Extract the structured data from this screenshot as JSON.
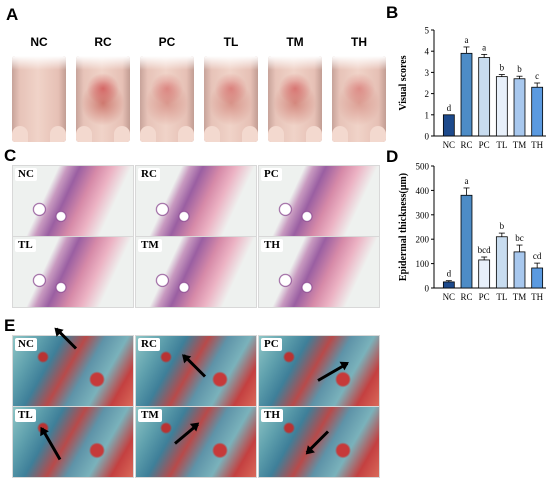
{
  "panels": {
    "a": {
      "letter": "A",
      "groups": [
        "NC",
        "RC",
        "PC",
        "TL",
        "TM",
        "TH"
      ]
    },
    "c": {
      "letter": "C",
      "groups": [
        "NC",
        "RC",
        "PC",
        "TL",
        "TM",
        "TH"
      ]
    },
    "e": {
      "letter": "E",
      "groups": [
        "NC",
        "RC",
        "PC",
        "TL",
        "TM",
        "TH"
      ]
    }
  },
  "chart_data": [
    {
      "panel": "B",
      "type": "bar",
      "categories": [
        "NC",
        "RC",
        "PC",
        "TL",
        "TM",
        "TH"
      ],
      "values": [
        1,
        3.9,
        3.7,
        2.8,
        2.7,
        2.3
      ],
      "errors": [
        0,
        0.3,
        0.15,
        0.1,
        0.12,
        0.2
      ],
      "letters": [
        "d",
        "a",
        "a",
        "b",
        "b",
        "c"
      ],
      "ylabel": "Visual scores",
      "ylim": [
        0,
        5
      ],
      "yticks": [
        0,
        1,
        2,
        3,
        4,
        5
      ],
      "colors": [
        "#1d4a8c",
        "#4d8cc6",
        "#c8dcef",
        "#e8f0fa",
        "#a8c8ee",
        "#5b9ae0"
      ]
    },
    {
      "panel": "D",
      "type": "bar",
      "categories": [
        "NC",
        "RC",
        "PC",
        "TL",
        "TM",
        "TH"
      ],
      "values": [
        25,
        380,
        115,
        210,
        148,
        82
      ],
      "errors": [
        5,
        30,
        12,
        15,
        28,
        20
      ],
      "letters": [
        "d",
        "a",
        "bcd",
        "b",
        "bc",
        "cd"
      ],
      "ylabel": "Epidermal thickness(μm)",
      "ylim": [
        0,
        500
      ],
      "yticks": [
        0,
        100,
        200,
        300,
        400,
        500
      ],
      "colors": [
        "#1d4a8c",
        "#4d8cc6",
        "#e8f0fa",
        "#c8dcef",
        "#a8c8ee",
        "#5b9ae0"
      ]
    }
  ]
}
